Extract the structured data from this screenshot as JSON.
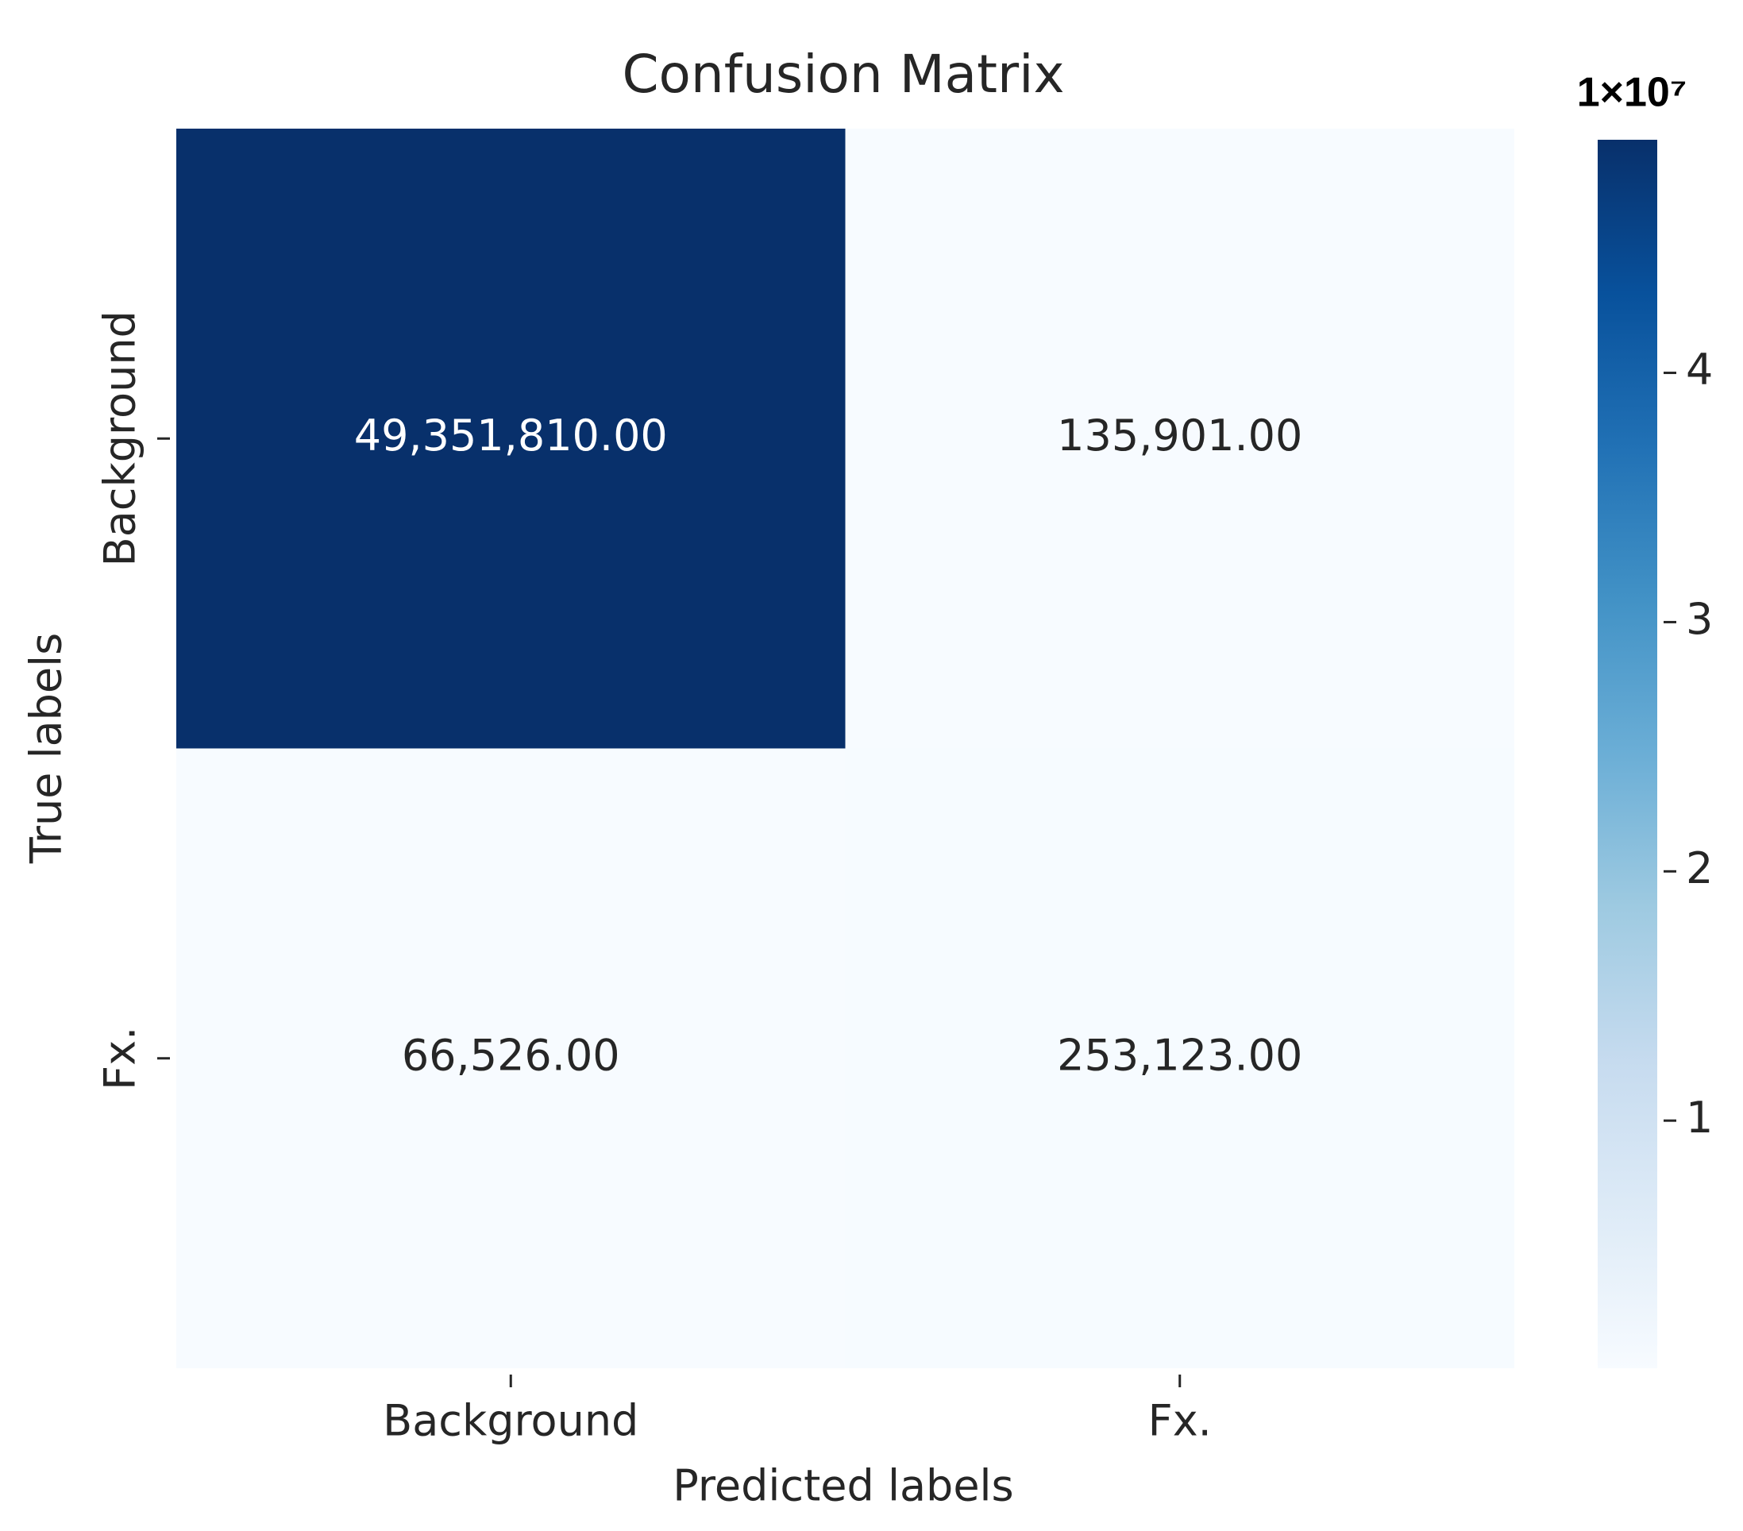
{
  "chart_data": {
    "type": "heatmap",
    "title": "Confusion Matrix",
    "x_label": "Predicted labels",
    "y_label": "True labels",
    "x_categories": [
      "Background",
      "Fx."
    ],
    "y_categories": [
      "Background",
      "Fx."
    ],
    "values": [
      [
        49351810,
        135901
      ],
      [
        66526,
        253123
      ]
    ],
    "value_labels": [
      [
        "49,351,810.00",
        "135,901.00"
      ],
      [
        "66,526.00",
        "253,123.00"
      ]
    ],
    "colormap": [
      "#f7fbff",
      "#deebf7",
      "#c6dbef",
      "#9ecae1",
      "#6baed6",
      "#4292c6",
      "#2171b5",
      "#08519c",
      "#08306b"
    ],
    "clim": [
      66526,
      49351810
    ],
    "cticks": [
      {
        "value": 10000000,
        "label": "1"
      },
      {
        "value": 20000000,
        "label": "2"
      },
      {
        "value": 30000000,
        "label": "3"
      },
      {
        "value": 40000000,
        "label": "4"
      }
    ],
    "colorbar_offset_label": "1×10⁷"
  }
}
